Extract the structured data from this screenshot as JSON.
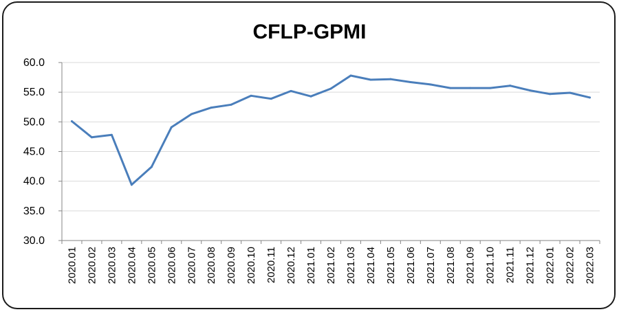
{
  "chart_data": {
    "type": "line",
    "title": "CFLP-GPMI",
    "xlabel": "",
    "ylabel": "",
    "ylim": [
      30,
      60
    ],
    "yticks": [
      "30.0",
      "35.0",
      "40.0",
      "45.0",
      "50.0",
      "55.0",
      "60.0"
    ],
    "grid": true,
    "legend": "none",
    "categories": [
      "2020.01",
      "2020.02",
      "2020.03",
      "2020.04",
      "2020.05",
      "2020.06",
      "2020.07",
      "2020.08",
      "2020.09",
      "2020.10",
      "2020.11",
      "2020.12",
      "2021.01",
      "2021.02",
      "2021.03",
      "2021.04",
      "2021.05",
      "2021.06",
      "2021.07",
      "2021.08",
      "2021.09",
      "2021.10",
      "2021.11",
      "2021.12",
      "2022.01",
      "2022.02",
      "2022.03"
    ],
    "series": [
      {
        "color": "#4a7ebb",
        "values": [
          50.1,
          47.4,
          47.8,
          39.4,
          42.4,
          49.1,
          51.3,
          52.4,
          52.9,
          54.4,
          53.9,
          55.2,
          54.3,
          55.6,
          57.8,
          57.1,
          57.2,
          56.7,
          56.3,
          55.7,
          55.7,
          55.7,
          56.1,
          55.3,
          54.7,
          54.9,
          54.1
        ]
      }
    ],
    "colors": {
      "gridline": "#d9d9d9",
      "axis": "#868686",
      "frame": "#1a1a1a"
    }
  }
}
